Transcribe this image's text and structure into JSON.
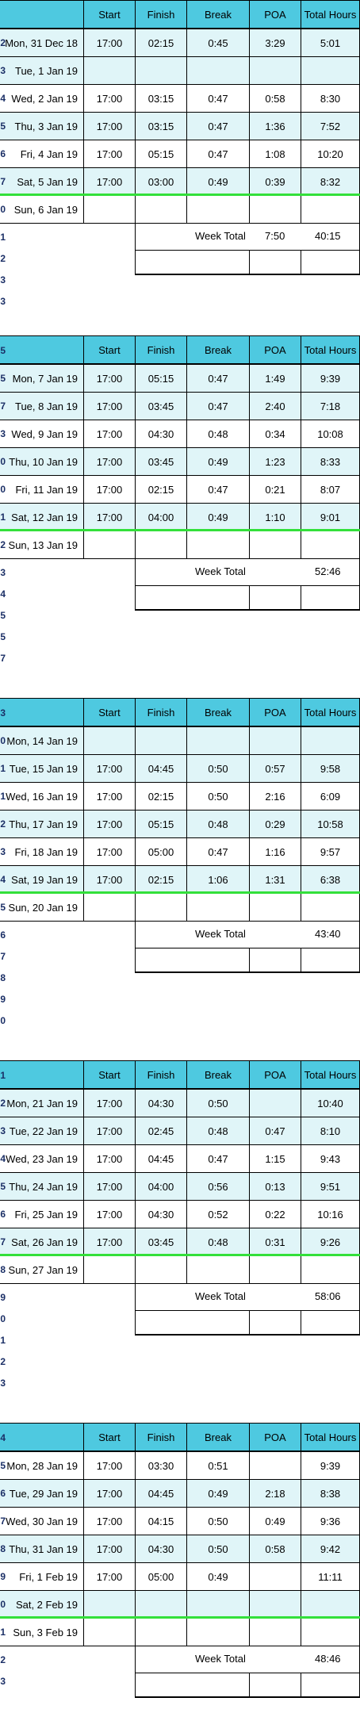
{
  "columns": [
    "Start",
    "Finish",
    "Break",
    "POA",
    "Total Hours"
  ],
  "total_label": "Week Total",
  "weeks": [
    {
      "rows_before": [
        "1"
      ],
      "days": [
        {
          "num": "2",
          "day": "Mon, 31 Dec 18",
          "start": "17:00",
          "finish": "02:15",
          "break": "0:45",
          "poa": "3:29",
          "total": "5:01"
        },
        {
          "num": "3",
          "day": "Tue, 1 Jan 19",
          "start": "",
          "finish": "",
          "break": "",
          "poa": "",
          "total": ""
        },
        {
          "num": "4",
          "day": "Wed, 2 Jan 19",
          "start": "17:00",
          "finish": "03:15",
          "break": "0:47",
          "poa": "0:58",
          "total": "8:30"
        },
        {
          "num": "5",
          "day": "Thu, 3 Jan 19",
          "start": "17:00",
          "finish": "03:15",
          "break": "0:47",
          "poa": "1:36",
          "total": "7:52"
        },
        {
          "num": "6",
          "day": "Fri, 4 Jan 19",
          "start": "17:00",
          "finish": "05:15",
          "break": "0:47",
          "poa": "1:08",
          "total": "10:20"
        },
        {
          "num": "7",
          "day": "Sat, 5 Jan 19",
          "start": "17:00",
          "finish": "03:00",
          "break": "0:49",
          "poa": "0:39",
          "total": "8:32"
        },
        {
          "num": "0",
          "day": "Sun, 6 Jan 19",
          "start": "",
          "finish": "",
          "break": "",
          "poa": "",
          "total": ""
        }
      ],
      "total_poa": "7:50",
      "total_hours": "40:15",
      "after_nums": [
        "1",
        "2",
        "3",
        "3"
      ]
    },
    {
      "header_num": "5",
      "days": [
        {
          "num": "5",
          "day": "Mon, 7 Jan 19",
          "start": "17:00",
          "finish": "05:15",
          "break": "0:47",
          "poa": "1:49",
          "total": "9:39"
        },
        {
          "num": "7",
          "day": "Tue, 8 Jan 19",
          "start": "17:00",
          "finish": "03:45",
          "break": "0:47",
          "poa": "2:40",
          "total": "7:18"
        },
        {
          "num": "3",
          "day": "Wed, 9 Jan 19",
          "start": "17:00",
          "finish": "04:30",
          "break": "0:48",
          "poa": "0:34",
          "total": "10:08"
        },
        {
          "num": "0",
          "day": "Thu, 10 Jan 19",
          "start": "17:00",
          "finish": "03:45",
          "break": "0:49",
          "poa": "1:23",
          "total": "8:33"
        },
        {
          "num": "0",
          "day": "Fri, 11 Jan 19",
          "start": "17:00",
          "finish": "02:15",
          "break": "0:47",
          "poa": "0:21",
          "total": "8:07"
        },
        {
          "num": "1",
          "day": "Sat, 12 Jan 19",
          "start": "17:00",
          "finish": "04:00",
          "break": "0:49",
          "poa": "1:10",
          "total": "9:01"
        },
        {
          "num": "2",
          "day": "Sun, 13 Jan 19",
          "start": "",
          "finish": "",
          "break": "",
          "poa": "",
          "total": ""
        }
      ],
      "total_poa": "",
      "total_hours": "52:46",
      "after_nums": [
        "3",
        "4",
        "5",
        "5",
        "7"
      ]
    },
    {
      "header_num": "3",
      "days": [
        {
          "num": "0",
          "day": "Mon, 14 Jan 19",
          "start": "",
          "finish": "",
          "break": "",
          "poa": "",
          "total": ""
        },
        {
          "num": "1",
          "day": "Tue, 15 Jan 19",
          "start": "17:00",
          "finish": "04:45",
          "break": "0:50",
          "poa": "0:57",
          "total": "9:58"
        },
        {
          "num": "1",
          "day": "Wed, 16 Jan 19",
          "start": "17:00",
          "finish": "02:15",
          "break": "0:50",
          "poa": "2:16",
          "total": "6:09"
        },
        {
          "num": "2",
          "day": "Thu, 17 Jan 19",
          "start": "17:00",
          "finish": "05:15",
          "break": "0:48",
          "poa": "0:29",
          "total": "10:58"
        },
        {
          "num": "3",
          "day": "Fri, 18 Jan 19",
          "start": "17:00",
          "finish": "05:00",
          "break": "0:47",
          "poa": "1:16",
          "total": "9:57"
        },
        {
          "num": "4",
          "day": "Sat, 19 Jan 19",
          "start": "17:00",
          "finish": "02:15",
          "break": "1:06",
          "poa": "1:31",
          "total": "6:38"
        },
        {
          "num": "5",
          "day": "Sun, 20 Jan 19",
          "start": "",
          "finish": "",
          "break": "",
          "poa": "",
          "total": ""
        }
      ],
      "total_poa": "",
      "total_hours": "43:40",
      "after_nums": [
        "6",
        "7",
        "8",
        "9",
        "0"
      ]
    },
    {
      "header_num": "1",
      "days": [
        {
          "num": "2",
          "day": "Mon, 21 Jan 19",
          "start": "17:00",
          "finish": "04:30",
          "break": "0:50",
          "poa": "",
          "total": "10:40"
        },
        {
          "num": "3",
          "day": "Tue, 22 Jan 19",
          "start": "17:00",
          "finish": "02:45",
          "break": "0:48",
          "poa": "0:47",
          "total": "8:10"
        },
        {
          "num": "4",
          "day": "Wed, 23 Jan 19",
          "start": "17:00",
          "finish": "04:45",
          "break": "0:47",
          "poa": "1:15",
          "total": "9:43"
        },
        {
          "num": "5",
          "day": "Thu, 24 Jan 19",
          "start": "17:00",
          "finish": "04:00",
          "break": "0:56",
          "poa": "0:13",
          "total": "9:51"
        },
        {
          "num": "6",
          "day": "Fri, 25 Jan 19",
          "start": "17:00",
          "finish": "04:30",
          "break": "0:52",
          "poa": "0:22",
          "total": "10:16"
        },
        {
          "num": "7",
          "day": "Sat, 26 Jan 19",
          "start": "17:00",
          "finish": "03:45",
          "break": "0:48",
          "poa": "0:31",
          "total": "9:26"
        },
        {
          "num": "8",
          "day": "Sun, 27 Jan 19",
          "start": "",
          "finish": "",
          "break": "",
          "poa": "",
          "total": ""
        }
      ],
      "total_poa": "",
      "total_hours": "58:06",
      "after_nums": [
        "9",
        "0",
        "1",
        "2",
        "3"
      ]
    },
    {
      "header_num": "4",
      "days": [
        {
          "num": "5",
          "day": "Mon, 28 Jan 19",
          "start": "17:00",
          "finish": "03:30",
          "break": "0:51",
          "poa": "",
          "total": "9:39"
        },
        {
          "num": "6",
          "day": "Tue, 29 Jan 19",
          "start": "17:00",
          "finish": "04:45",
          "break": "0:49",
          "poa": "2:18",
          "total": "8:38"
        },
        {
          "num": "7",
          "day": "Wed, 30 Jan 19",
          "start": "17:00",
          "finish": "04:15",
          "break": "0:50",
          "poa": "0:49",
          "total": "9:36"
        },
        {
          "num": "8",
          "day": "Thu, 31 Jan 19",
          "start": "17:00",
          "finish": "04:30",
          "break": "0:50",
          "poa": "0:58",
          "total": "9:42"
        },
        {
          "num": "9",
          "day": "Fri, 1 Feb 19",
          "start": "17:00",
          "finish": "05:00",
          "break": "0:49",
          "poa": "",
          "total": "11:11"
        },
        {
          "num": "0",
          "day": "Sat, 2 Feb 19",
          "start": "",
          "finish": "",
          "break": "",
          "poa": "",
          "total": ""
        },
        {
          "num": "1",
          "day": "Sun, 3 Feb 19",
          "start": "",
          "finish": "",
          "break": "",
          "poa": "",
          "total": ""
        }
      ],
      "total_poa": "",
      "total_hours": "48:46",
      "after_nums": [
        "2",
        "3"
      ]
    }
  ]
}
